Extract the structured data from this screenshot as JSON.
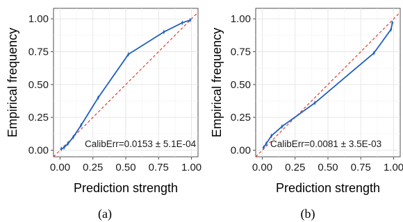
{
  "chart_data": [
    {
      "type": "line",
      "caption": "(a)",
      "xlabel": "Prediction strength",
      "ylabel": "Empirical frequency",
      "xlim": [
        -0.05,
        1.05
      ],
      "ylim": [
        -0.05,
        1.08
      ],
      "xticks": [
        "0.00",
        "0.25",
        "0.50",
        "0.75",
        "1.00"
      ],
      "yticks": [
        "0.00",
        "0.25",
        "0.50",
        "0.75",
        "1.00"
      ],
      "grid": true,
      "annotation": "CalibErr=0.0153 ± 5.1E-04",
      "reference_line": {
        "style": "dashed",
        "color": "#e8291c",
        "from": [
          -0.05,
          -0.05
        ],
        "to": [
          1.05,
          1.05
        ]
      },
      "series": [
        {
          "color": "#1f5fbf",
          "x": [
            0.01,
            0.03,
            0.06,
            0.1,
            0.16,
            0.29,
            0.52,
            0.79,
            0.93,
            0.99
          ],
          "y": [
            0.01,
            0.02,
            0.05,
            0.1,
            0.19,
            0.4,
            0.73,
            0.9,
            0.97,
            0.99
          ]
        }
      ]
    },
    {
      "type": "line",
      "caption": "(b)",
      "xlabel": "Prediction strength",
      "ylabel": "Empirical frequency",
      "xlim": [
        -0.05,
        1.05
      ],
      "ylim": [
        -0.05,
        1.08
      ],
      "xticks": [
        "0.00",
        "0.25",
        "0.50",
        "0.75",
        "1.00"
      ],
      "yticks": [
        "0.00",
        "0.25",
        "0.50",
        "0.75",
        "1.00"
      ],
      "grid": true,
      "annotation": "CalibErr=0.0081 ± 3.5E-03",
      "reference_line": {
        "style": "dashed",
        "color": "#e8291c",
        "from": [
          -0.05,
          -0.05
        ],
        "to": [
          1.05,
          1.05
        ]
      },
      "series": [
        {
          "color": "#1f5fbf",
          "x": [
            0.01,
            0.03,
            0.07,
            0.15,
            0.4,
            0.85,
            0.98,
            0.99
          ],
          "y": [
            0.02,
            0.05,
            0.11,
            0.18,
            0.36,
            0.74,
            0.92,
            0.97
          ]
        }
      ]
    }
  ]
}
